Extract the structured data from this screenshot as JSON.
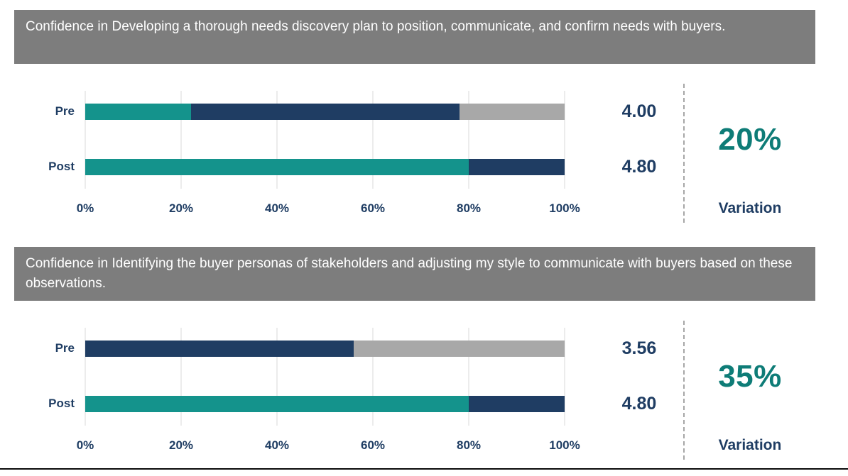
{
  "colors": {
    "teal": "#14938C",
    "navy": "#1F3D63",
    "gray": "#A8A8A8",
    "header_bg": "#7D7D7D",
    "header_text": "#FFFFFF",
    "variation": "#0E7C77",
    "gridline": "#D9D9D9",
    "divider": "#A6A6A6"
  },
  "charts": [
    {
      "title": "Confidence in Developing a thorough needs discovery plan to position, communicate, and confirm needs with buyers.",
      "rows": [
        {
          "label": "Pre",
          "score": "4.00",
          "segments": [
            {
              "color": "teal",
              "value": 22
            },
            {
              "color": "navy",
              "value": 56
            },
            {
              "color": "gray",
              "value": 22
            }
          ]
        },
        {
          "label": "Post",
          "score": "4.80",
          "segments": [
            {
              "color": "teal",
              "value": 80
            },
            {
              "color": "navy",
              "value": 20
            }
          ]
        }
      ],
      "x_ticks": [
        "0%",
        "20%",
        "40%",
        "60%",
        "80%",
        "100%"
      ],
      "variation": "20%",
      "variation_label": "Variation"
    },
    {
      "title": "Confidence in Identifying the buyer personas of stakeholders and adjusting my style to communicate with buyers based on these observations.",
      "rows": [
        {
          "label": "Pre",
          "score": "3.56",
          "segments": [
            {
              "color": "navy",
              "value": 56
            },
            {
              "color": "gray",
              "value": 44
            }
          ]
        },
        {
          "label": "Post",
          "score": "4.80",
          "segments": [
            {
              "color": "teal",
              "value": 80
            },
            {
              "color": "navy",
              "value": 20
            }
          ]
        }
      ],
      "x_ticks": [
        "0%",
        "20%",
        "40%",
        "60%",
        "80%",
        "100%"
      ],
      "variation": "35%",
      "variation_label": "Variation"
    }
  ],
  "chart_data": [
    {
      "type": "bar",
      "orientation": "horizontal",
      "stacked": true,
      "title": "Confidence in Developing a thorough needs discovery plan to position, communicate, and confirm needs with buyers.",
      "categories": [
        "Pre",
        "Post"
      ],
      "series": [
        {
          "name": "teal",
          "values": [
            22,
            80
          ]
        },
        {
          "name": "navy",
          "values": [
            56,
            20
          ]
        },
        {
          "name": "gray",
          "values": [
            22,
            0
          ]
        }
      ],
      "bar_value_labels": [
        "4.00",
        "4.80"
      ],
      "xlim": [
        0,
        100
      ],
      "x_tick_labels": [
        "0%",
        "20%",
        "40%",
        "60%",
        "80%",
        "100%"
      ],
      "grid": true,
      "legend": false,
      "annotations": [
        {
          "text": "20%"
        },
        {
          "text": "Variation"
        }
      ]
    },
    {
      "type": "bar",
      "orientation": "horizontal",
      "stacked": true,
      "title": "Confidence in Identifying the buyer personas of stakeholders and adjusting my style to communicate with buyers based on these observations.",
      "categories": [
        "Pre",
        "Post"
      ],
      "series": [
        {
          "name": "teal",
          "values": [
            0,
            80
          ]
        },
        {
          "name": "navy",
          "values": [
            56,
            20
          ]
        },
        {
          "name": "gray",
          "values": [
            44,
            0
          ]
        }
      ],
      "bar_value_labels": [
        "3.56",
        "4.80"
      ],
      "xlim": [
        0,
        100
      ],
      "x_tick_labels": [
        "0%",
        "20%",
        "40%",
        "60%",
        "80%",
        "100%"
      ],
      "grid": true,
      "legend": false,
      "annotations": [
        {
          "text": "35%"
        },
        {
          "text": "Variation"
        }
      ]
    }
  ]
}
